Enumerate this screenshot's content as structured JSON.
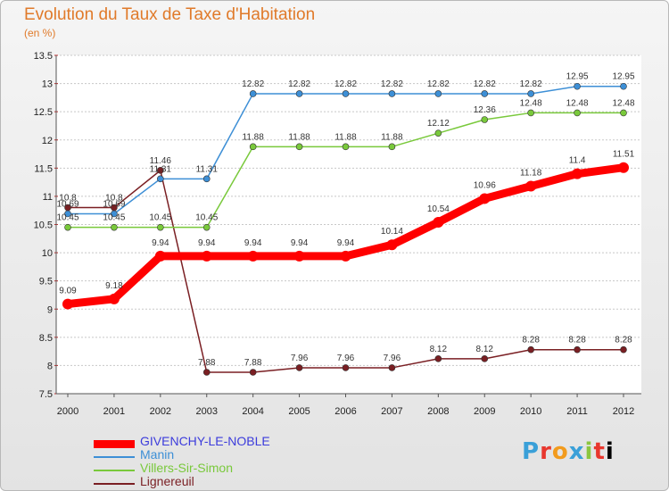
{
  "title": "Evolution du Taux de Taxe d'Habitation",
  "subtitle": "(en %)",
  "logo": [
    "P",
    "r",
    "o",
    "x",
    "i",
    "t",
    "i"
  ],
  "chart_data": {
    "type": "line",
    "title": "Evolution du Taux de Taxe d'Habitation",
    "ylabel": "(en %)",
    "xlabel": "",
    "x": [
      "2000",
      "2001",
      "2002",
      "2003",
      "2004",
      "2005",
      "2006",
      "2007",
      "2008",
      "2009",
      "2010",
      "2011",
      "2012"
    ],
    "ylim": [
      7.5,
      13.5
    ],
    "yticks": [
      "7.5",
      "8",
      "8.5",
      "9",
      "9.5",
      "10",
      "10.5",
      "11",
      "11.5",
      "12",
      "12.5",
      "13",
      "13.5"
    ],
    "grid": "horizontal",
    "legend_position": "bottom-left",
    "series": [
      {
        "name": "GIVENCHY-LE-NOBLE",
        "color": "#ff0000",
        "values": [
          9.09,
          9.18,
          9.94,
          9.94,
          9.94,
          9.94,
          9.94,
          10.14,
          10.54,
          10.96,
          11.18,
          11.4,
          11.51
        ],
        "labels": [
          "9.09",
          "9.18",
          "9.94",
          "9.94",
          "9.94",
          "9.94",
          "9.94",
          "10.14",
          "10.54",
          "10.96",
          "11.18",
          "11.4",
          "11.51"
        ]
      },
      {
        "name": "Manin",
        "color": "#3d8fd6",
        "values": [
          10.69,
          10.69,
          11.31,
          11.31,
          12.82,
          12.82,
          12.82,
          12.82,
          12.82,
          12.82,
          12.82,
          12.95,
          12.95
        ],
        "labels": [
          "10.69",
          "10.69",
          "11.31",
          "11.31",
          "12.82",
          "12.82",
          "12.82",
          "12.82",
          "12.82",
          "12.82",
          "12.82",
          "12.95",
          "12.95"
        ]
      },
      {
        "name": "Villers-Sir-Simon",
        "color": "#79c93b",
        "values": [
          10.45,
          10.45,
          10.45,
          10.45,
          11.88,
          11.88,
          11.88,
          11.88,
          12.12,
          12.36,
          12.48,
          12.48,
          12.48
        ],
        "labels": [
          "10.45",
          "10.45",
          "10.45",
          "10.45",
          "11.88",
          "11.88",
          "11.88",
          "11.88",
          "12.12",
          "12.36",
          "12.48",
          "12.48",
          "12.48"
        ]
      },
      {
        "name": "Lignereuil",
        "color": "#7a1f23",
        "values": [
          10.8,
          10.8,
          11.46,
          7.88,
          7.88,
          7.96,
          7.96,
          7.96,
          8.12,
          8.12,
          8.28,
          8.28,
          8.28
        ],
        "labels": [
          "10.8",
          "10.8",
          "11.46",
          "7.88",
          "7.88",
          "7.96",
          "7.96",
          "7.96",
          "8.12",
          "8.12",
          "8.28",
          "8.28",
          "8.28"
        ]
      }
    ]
  }
}
